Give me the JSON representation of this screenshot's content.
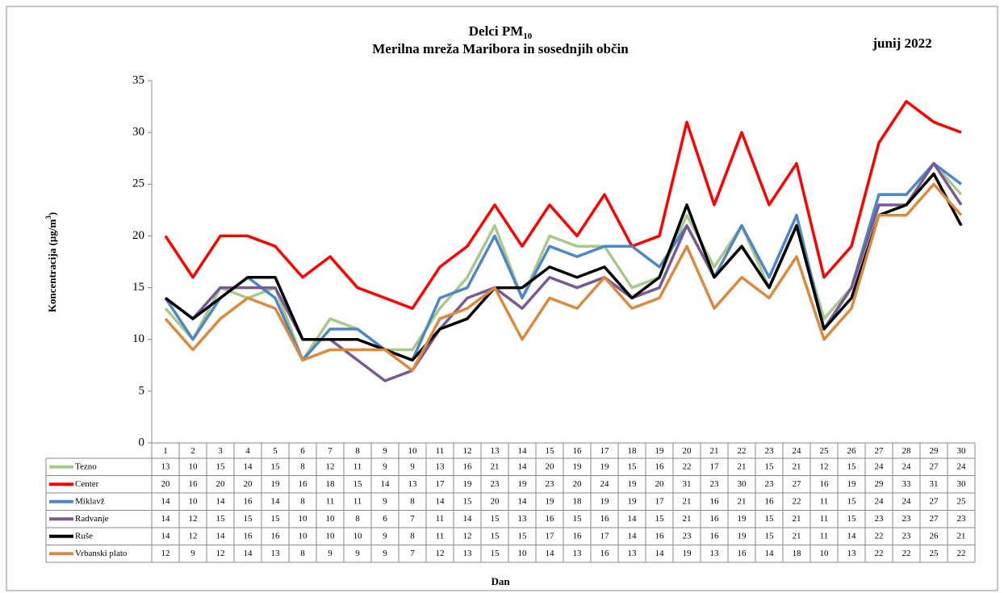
{
  "chart_data": {
    "type": "line",
    "title": "Delci PM",
    "title_subscript": "10",
    "subtitle": "Merilna mreža Maribora in sosednjih občin",
    "period": "junij 2022",
    "y_label": "Koncentracija (µg/m",
    "y_label_superscript": "3",
    "y_label_suffix": ")",
    "x_label": "Dan",
    "categories": [
      "1",
      "2",
      "3",
      "4",
      "5",
      "6",
      "7",
      "8",
      "9",
      "10",
      "11",
      "12",
      "13",
      "14",
      "15",
      "16",
      "17",
      "18",
      "19",
      "20",
      "21",
      "22",
      "23",
      "24",
      "25",
      "26",
      "27",
      "28",
      "29",
      "30"
    ],
    "ylim": [
      0,
      35
    ],
    "yticks": [
      0,
      5,
      10,
      15,
      20,
      25,
      30,
      35
    ],
    "grid": false,
    "series": [
      {
        "name": "Tezno",
        "color": "#a9c98a",
        "values": [
          13,
          10,
          15,
          14,
          15,
          8,
          12,
          11,
          9,
          9,
          13,
          16,
          21,
          14,
          20,
          19,
          19,
          15,
          16,
          22,
          17,
          21,
          15,
          21,
          12,
          15,
          24,
          24,
          27,
          24
        ]
      },
      {
        "name": "Center",
        "color": "#ff0000",
        "values": [
          20,
          16,
          20,
          20,
          19,
          16,
          18,
          15,
          14,
          13,
          17,
          19,
          23,
          19,
          23,
          20,
          24,
          19,
          20,
          31,
          23,
          30,
          23,
          27,
          16,
          19,
          29,
          33,
          31,
          30
        ]
      },
      {
        "name": "Miklavž",
        "color": "#4f86c6",
        "values": [
          14,
          10,
          14,
          16,
          14,
          8,
          11,
          11,
          9,
          8,
          14,
          15,
          20,
          14,
          19,
          18,
          19,
          19,
          17,
          21,
          16,
          21,
          16,
          22,
          11,
          15,
          24,
          24,
          27,
          25
        ]
      },
      {
        "name": "Radvanje",
        "color": "#7a5a94",
        "values": [
          14,
          12,
          15,
          15,
          15,
          10,
          10,
          8,
          6,
          7,
          11,
          14,
          15,
          13,
          16,
          15,
          16,
          14,
          15,
          21,
          16,
          19,
          15,
          21,
          11,
          15,
          23,
          23,
          27,
          23
        ]
      },
      {
        "name": "Ruše",
        "color": "#000000",
        "values": [
          14,
          12,
          14,
          16,
          16,
          10,
          10,
          10,
          9,
          8,
          11,
          12,
          15,
          15,
          17,
          16,
          17,
          14,
          16,
          23,
          16,
          19,
          15,
          21,
          11,
          14,
          22,
          23,
          26,
          21
        ]
      },
      {
        "name": "Vrbanski plato",
        "color": "#d98a3d",
        "values": [
          12,
          9,
          12,
          14,
          13,
          8,
          9,
          9,
          9,
          7,
          12,
          13,
          15,
          10,
          14,
          13,
          16,
          13,
          14,
          19,
          13,
          16,
          14,
          18,
          10,
          13,
          22,
          22,
          25,
          22
        ]
      }
    ]
  }
}
